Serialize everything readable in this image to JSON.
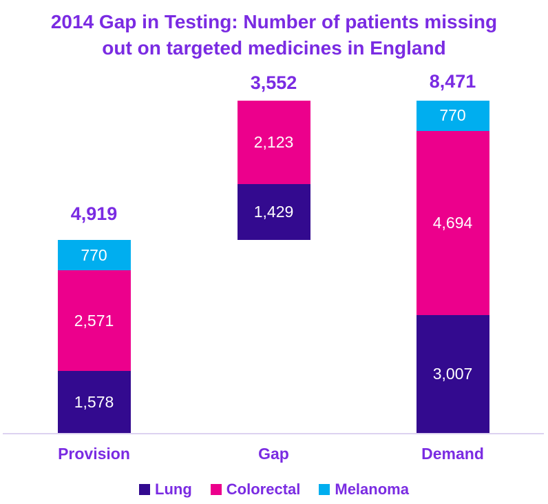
{
  "title": {
    "line1": "2014 Gap in Testing: Number of patients missing",
    "line2": "out on targeted medicines in England"
  },
  "colors": {
    "title_text": "#7A2BE2",
    "label_text": "#7A2BE2",
    "lung": "#330A8F",
    "colorectal": "#EC008C",
    "melanoma": "#00AEEF",
    "axis_line": "#DCD2F0",
    "segment_value_text": "#FFFFFF",
    "background": "#FFFFFF"
  },
  "legend": [
    {
      "label": "Lung",
      "color": "#330A8F"
    },
    {
      "label": "Colorectal",
      "color": "#EC008C"
    },
    {
      "label": "Melanoma",
      "color": "#00AEEF"
    }
  ],
  "chart_data": {
    "type": "bar",
    "subtype": "stacked-waterfall",
    "title": "2014 Gap in Testing: Number of patients missing out on targeted medicines in England",
    "categories": [
      "Provision",
      "Gap",
      "Demand"
    ],
    "series": [
      {
        "name": "Lung",
        "color": "#330A8F",
        "values": [
          1578,
          1429,
          3007
        ],
        "labels": [
          "1,578",
          "1,429",
          "3,007"
        ]
      },
      {
        "name": "Colorectal",
        "color": "#EC008C",
        "values": [
          2571,
          2123,
          4694
        ],
        "labels": [
          "2,571",
          "2,123",
          "4,694"
        ]
      },
      {
        "name": "Melanoma",
        "color": "#00AEEF",
        "values": [
          770,
          0,
          770
        ],
        "labels": [
          "770",
          "",
          "770"
        ]
      }
    ],
    "totals": [
      4919,
      3552,
      8471
    ],
    "total_labels": [
      "4,919",
      "3,552",
      "8,471"
    ],
    "offsets": [
      0,
      4919,
      0
    ],
    "ylim": [
      0,
      8471
    ],
    "grid": false,
    "y_axis_visible": false,
    "legend_position": "bottom",
    "xlabel": "",
    "ylabel": ""
  }
}
